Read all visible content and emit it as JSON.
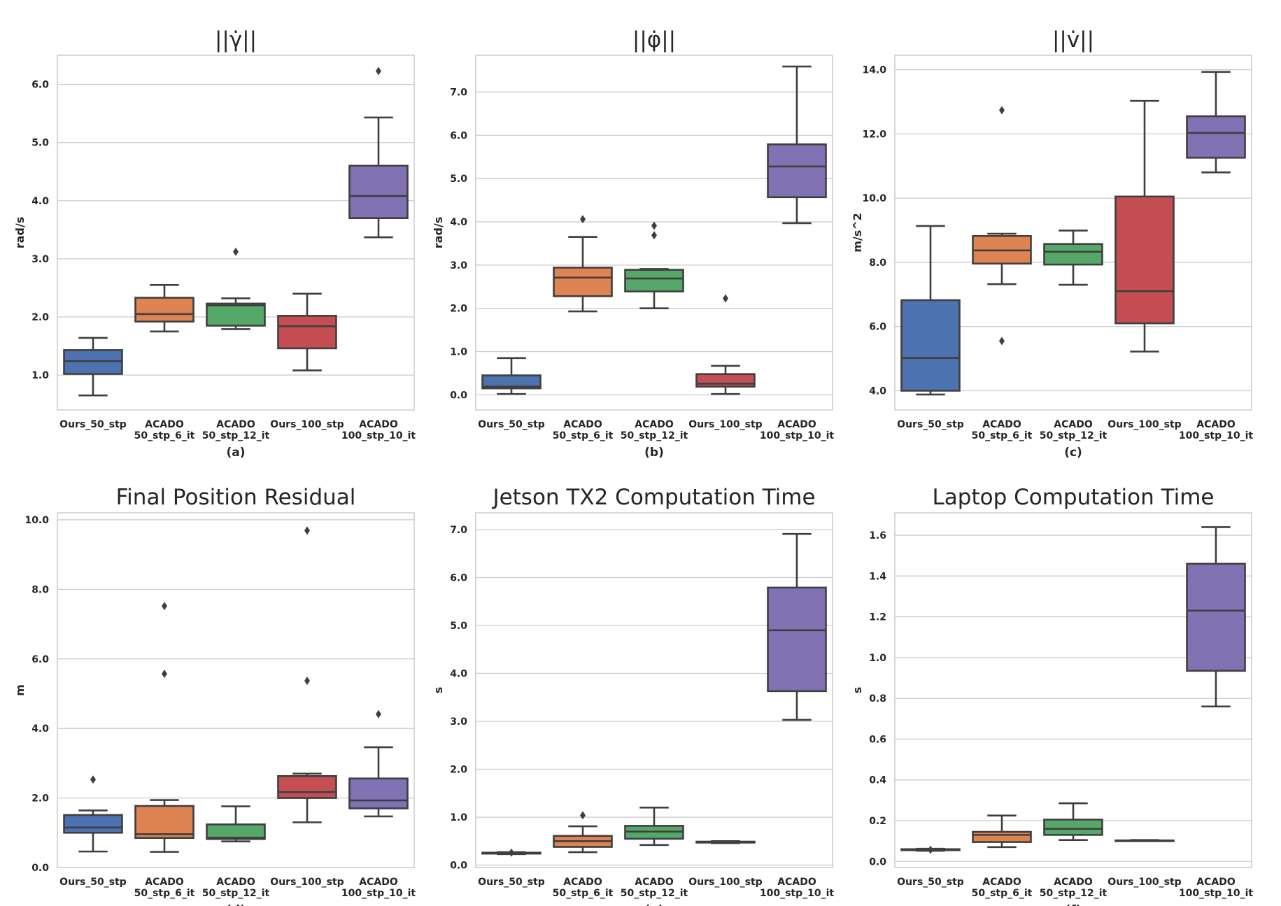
{
  "palette": {
    "Ours_50_stp": "#4c72b0",
    "ACADO 50_stp_6_it": "#dd8452",
    "ACADO 50_stp_12_it": "#55a868",
    "Ours_100_stp": "#c44e52",
    "ACADO 100_stp_10_it": "#8172b3"
  },
  "chart_data": [
    {
      "type": "box",
      "title": "||γ̇||",
      "xlabel": "(a)",
      "ylabel": "rad/s",
      "ylim": [
        0.4,
        6.5
      ],
      "yticks": [
        1.0,
        2.0,
        3.0,
        4.0,
        5.0,
        6.0
      ],
      "ytick_labels": [
        "1.0",
        "2.0",
        "3.0",
        "4.0",
        "5.0",
        "6.0"
      ],
      "categories": [
        "Ours_50_stp",
        "ACADO 50_stp_6_it",
        "ACADO 50_stp_12_it",
        "Ours_100_stp",
        "ACADO 100_stp_10_it"
      ],
      "category_lines": [
        [
          "Ours_50_stp"
        ],
        [
          "ACADO",
          "50_stp_6_it"
        ],
        [
          "ACADO",
          "50_stp_12_it"
        ],
        [
          "Ours_100_stp"
        ],
        [
          "ACADO",
          "100_stp_10_it"
        ]
      ],
      "boxes": [
        {
          "whislo": 0.65,
          "q1": 1.02,
          "med": 1.24,
          "q3": 1.43,
          "whishi": 1.64,
          "fliers": []
        },
        {
          "whislo": 1.75,
          "q1": 1.92,
          "med": 2.05,
          "q3": 2.33,
          "whishi": 2.55,
          "fliers": []
        },
        {
          "whislo": 1.79,
          "q1": 1.85,
          "med": 2.2,
          "q3": 2.23,
          "whishi": 2.32,
          "fliers": [
            3.12
          ]
        },
        {
          "whislo": 1.08,
          "q1": 1.46,
          "med": 1.84,
          "q3": 2.02,
          "whishi": 2.4,
          "fliers": []
        },
        {
          "whislo": 3.37,
          "q1": 3.7,
          "med": 4.08,
          "q3": 4.6,
          "whishi": 5.43,
          "fliers": [
            6.23
          ]
        }
      ]
    },
    {
      "type": "box",
      "title": "||φ̇||",
      "xlabel": "(b)",
      "ylabel": "rad/s",
      "ylim": [
        -0.35,
        7.85
      ],
      "yticks": [
        0.0,
        1.0,
        2.0,
        3.0,
        4.0,
        5.0,
        6.0,
        7.0
      ],
      "ytick_labels": [
        "0.0",
        "1.0",
        "2.0",
        "3.0",
        "4.0",
        "5.0",
        "6.0",
        "7.0"
      ],
      "categories": [
        "Ours_50_stp",
        "ACADO 50_stp_6_it",
        "ACADO 50_stp_12_it",
        "Ours_100_stp",
        "ACADO 100_stp_10_it"
      ],
      "category_lines": [
        [
          "Ours_50_stp"
        ],
        [
          "ACADO",
          "50_stp_6_it"
        ],
        [
          "ACADO",
          "50_stp_12_it"
        ],
        [
          "Ours_100_stp"
        ],
        [
          "ACADO",
          "100_stp_10_it"
        ]
      ],
      "boxes": [
        {
          "whislo": 0.02,
          "q1": 0.15,
          "med": 0.19,
          "q3": 0.45,
          "whishi": 0.85,
          "fliers": []
        },
        {
          "whislo": 1.93,
          "q1": 2.28,
          "med": 2.71,
          "q3": 2.94,
          "whishi": 3.65,
          "fliers": [
            4.06
          ]
        },
        {
          "whislo": 2.0,
          "q1": 2.39,
          "med": 2.69,
          "q3": 2.89,
          "whishi": 2.91,
          "fliers": [
            3.69,
            3.91
          ]
        },
        {
          "whislo": 0.02,
          "q1": 0.19,
          "med": 0.26,
          "q3": 0.48,
          "whishi": 0.67,
          "fliers": [
            2.23
          ]
        },
        {
          "whislo": 3.97,
          "q1": 4.57,
          "med": 5.28,
          "q3": 5.79,
          "whishi": 7.59,
          "fliers": []
        }
      ]
    },
    {
      "type": "box",
      "title": "||v̇||",
      "xlabel": "(c)",
      "ylabel": "m/s^2",
      "ylim": [
        3.4,
        14.45
      ],
      "yticks": [
        4.0,
        6.0,
        8.0,
        10.0,
        12.0,
        14.0
      ],
      "ytick_labels": [
        "4.0",
        "6.0",
        "8.0",
        "10.0",
        "12.0",
        "14.0"
      ],
      "categories": [
        "Ours_50_stp",
        "ACADO 50_stp_6_it",
        "ACADO 50_stp_12_it",
        "Ours_100_stp",
        "ACADO 100_stp_10_it"
      ],
      "category_lines": [
        [
          "Ours_50_stp"
        ],
        [
          "ACADO",
          "50_stp_6_it"
        ],
        [
          "ACADO",
          "50_stp_12_it"
        ],
        [
          "Ours_100_stp"
        ],
        [
          "ACADO",
          "100_stp_10_it"
        ]
      ],
      "boxes": [
        {
          "whislo": 3.88,
          "q1": 4.0,
          "med": 5.02,
          "q3": 6.82,
          "whishi": 9.13,
          "fliers": []
        },
        {
          "whislo": 7.32,
          "q1": 7.96,
          "med": 8.37,
          "q3": 8.82,
          "whishi": 8.89,
          "fliers": [
            5.55,
            12.74
          ]
        },
        {
          "whislo": 7.3,
          "q1": 7.93,
          "med": 8.33,
          "q3": 8.57,
          "whishi": 8.99,
          "fliers": []
        },
        {
          "whislo": 5.22,
          "q1": 6.1,
          "med": 7.1,
          "q3": 10.05,
          "whishi": 13.03,
          "fliers": []
        },
        {
          "whislo": 10.8,
          "q1": 11.26,
          "med": 12.03,
          "q3": 12.55,
          "whishi": 13.93,
          "fliers": []
        }
      ]
    },
    {
      "type": "box",
      "title": "Final Position Residual",
      "xlabel": "(d)",
      "ylabel": "m",
      "ylim": [
        0.0,
        10.2
      ],
      "yticks": [
        0.0,
        2.0,
        4.0,
        6.0,
        8.0,
        10.0
      ],
      "ytick_labels": [
        "0.0",
        "2.0",
        "4.0",
        "6.0",
        "8.0",
        "10.0"
      ],
      "categories": [
        "Ours_50_stp",
        "ACADO 50_stp_6_it",
        "ACADO 50_stp_12_it",
        "Ours_100_stp",
        "ACADO 100_stp_10_it"
      ],
      "category_lines": [
        [
          "Ours_50_stp"
        ],
        [
          "ACADO",
          "50_stp_6_it"
        ],
        [
          "ACADO",
          "50_stp_12_it"
        ],
        [
          "Ours_100_stp"
        ],
        [
          "ACADO",
          "100_stp_10_it"
        ]
      ],
      "boxes": [
        {
          "whislo": 0.46,
          "q1": 1.0,
          "med": 1.15,
          "q3": 1.51,
          "whishi": 1.64,
          "fliers": [
            2.53
          ]
        },
        {
          "whislo": 0.45,
          "q1": 0.85,
          "med": 0.96,
          "q3": 1.77,
          "whishi": 1.94,
          "fliers": [
            5.57,
            7.52
          ]
        },
        {
          "whislo": 0.75,
          "q1": 0.82,
          "med": 0.86,
          "q3": 1.24,
          "whishi": 1.76,
          "fliers": []
        },
        {
          "whislo": 1.3,
          "q1": 2.0,
          "med": 2.17,
          "q3": 2.63,
          "whishi": 2.7,
          "fliers": [
            5.37,
            9.69
          ]
        },
        {
          "whislo": 1.47,
          "q1": 1.7,
          "med": 1.93,
          "q3": 2.56,
          "whishi": 3.46,
          "fliers": [
            4.41
          ]
        }
      ]
    },
    {
      "type": "box",
      "title": "Jetson TX2 Computation Time",
      "xlabel": "(e)",
      "ylabel": "s",
      "ylim": [
        -0.05,
        7.35
      ],
      "yticks": [
        0.0,
        1.0,
        2.0,
        3.0,
        4.0,
        5.0,
        6.0,
        7.0
      ],
      "ytick_labels": [
        "0.0",
        "1.0",
        "2.0",
        "3.0",
        "4.0",
        "5.0",
        "6.0",
        "7.0"
      ],
      "categories": [
        "Ours_50_stp",
        "ACADO 50_stp_6_it",
        "ACADO 50_stp_12_it",
        "Ours_100_stp",
        "ACADO 100_stp_10_it"
      ],
      "category_lines": [
        [
          "Ours_50_stp"
        ],
        [
          "ACADO",
          "50_stp_6_it"
        ],
        [
          "ACADO",
          "50_stp_12_it"
        ],
        [
          "Ours_100_stp"
        ],
        [
          "ACADO",
          "100_stp_10_it"
        ]
      ],
      "boxes": [
        {
          "whislo": 0.23,
          "q1": 0.24,
          "med": 0.25,
          "q3": 0.26,
          "whishi": 0.27,
          "fliers": [
            0.26
          ]
        },
        {
          "whislo": 0.27,
          "q1": 0.38,
          "med": 0.5,
          "q3": 0.61,
          "whishi": 0.81,
          "fliers": [
            1.04
          ]
        },
        {
          "whislo": 0.42,
          "q1": 0.55,
          "med": 0.7,
          "q3": 0.82,
          "whishi": 1.2,
          "fliers": []
        },
        {
          "whislo": 0.46,
          "q1": 0.47,
          "med": 0.48,
          "q3": 0.49,
          "whishi": 0.5,
          "fliers": []
        },
        {
          "whislo": 3.03,
          "q1": 3.63,
          "med": 4.9,
          "q3": 5.79,
          "whishi": 6.91,
          "fliers": []
        }
      ]
    },
    {
      "type": "box",
      "title": "Laptop Computation Time",
      "xlabel": "(f)",
      "ylabel": "s",
      "ylim": [
        -0.03,
        1.71
      ],
      "yticks": [
        0.0,
        0.2,
        0.4,
        0.6,
        0.8,
        1.0,
        1.2,
        1.4,
        1.6
      ],
      "ytick_labels": [
        "0.0",
        "0.2",
        "0.4",
        "0.6",
        "0.8",
        "1.0",
        "1.2",
        "1.4",
        "1.6"
      ],
      "categories": [
        "Ours_50_stp",
        "ACADO 50_stp_6_it",
        "ACADO 50_stp_12_it",
        "Ours_100_stp",
        "ACADO 100_stp_10_it"
      ],
      "category_lines": [
        [
          "Ours_50_stp"
        ],
        [
          "ACADO",
          "50_stp_6_it"
        ],
        [
          "ACADO",
          "50_stp_12_it"
        ],
        [
          "Ours_100_stp"
        ],
        [
          "ACADO",
          "100_stp_10_it"
        ]
      ],
      "boxes": [
        {
          "whislo": 0.052,
          "q1": 0.055,
          "med": 0.057,
          "q3": 0.06,
          "whishi": 0.062,
          "fliers": [
            0.057
          ]
        },
        {
          "whislo": 0.07,
          "q1": 0.095,
          "med": 0.13,
          "q3": 0.145,
          "whishi": 0.225,
          "fliers": []
        },
        {
          "whislo": 0.105,
          "q1": 0.13,
          "med": 0.16,
          "q3": 0.205,
          "whishi": 0.285,
          "fliers": []
        },
        {
          "whislo": 0.1,
          "q1": 0.101,
          "med": 0.102,
          "q3": 0.103,
          "whishi": 0.105,
          "fliers": []
        },
        {
          "whislo": 0.76,
          "q1": 0.935,
          "med": 1.23,
          "q3": 1.46,
          "whishi": 1.64,
          "fliers": []
        }
      ]
    }
  ]
}
